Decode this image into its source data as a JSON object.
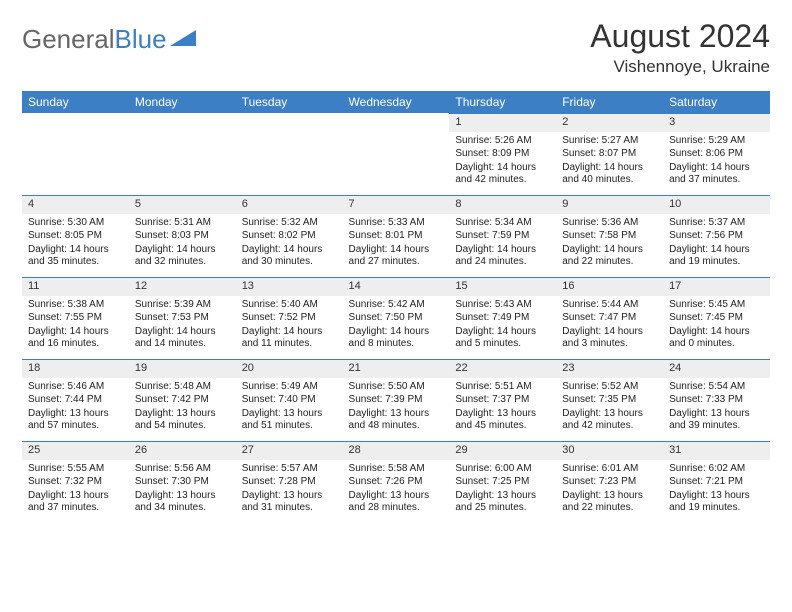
{
  "brand": {
    "part1": "General",
    "part2": "Blue"
  },
  "title": "August 2024",
  "subtitle": "Vishennoye, Ukraine",
  "header_bg": "#3d7fc4",
  "dayname_bg": "#eeeeee",
  "daynames": [
    "Sunday",
    "Monday",
    "Tuesday",
    "Wednesday",
    "Thursday",
    "Friday",
    "Saturday"
  ],
  "weeks": [
    [
      {
        "n": "",
        "sr": "",
        "ss": "",
        "dl": ""
      },
      {
        "n": "",
        "sr": "",
        "ss": "",
        "dl": ""
      },
      {
        "n": "",
        "sr": "",
        "ss": "",
        "dl": ""
      },
      {
        "n": "",
        "sr": "",
        "ss": "",
        "dl": ""
      },
      {
        "n": "1",
        "sr": "Sunrise: 5:26 AM",
        "ss": "Sunset: 8:09 PM",
        "dl": "Daylight: 14 hours and 42 minutes."
      },
      {
        "n": "2",
        "sr": "Sunrise: 5:27 AM",
        "ss": "Sunset: 8:07 PM",
        "dl": "Daylight: 14 hours and 40 minutes."
      },
      {
        "n": "3",
        "sr": "Sunrise: 5:29 AM",
        "ss": "Sunset: 8:06 PM",
        "dl": "Daylight: 14 hours and 37 minutes."
      }
    ],
    [
      {
        "n": "4",
        "sr": "Sunrise: 5:30 AM",
        "ss": "Sunset: 8:05 PM",
        "dl": "Daylight: 14 hours and 35 minutes."
      },
      {
        "n": "5",
        "sr": "Sunrise: 5:31 AM",
        "ss": "Sunset: 8:03 PM",
        "dl": "Daylight: 14 hours and 32 minutes."
      },
      {
        "n": "6",
        "sr": "Sunrise: 5:32 AM",
        "ss": "Sunset: 8:02 PM",
        "dl": "Daylight: 14 hours and 30 minutes."
      },
      {
        "n": "7",
        "sr": "Sunrise: 5:33 AM",
        "ss": "Sunset: 8:01 PM",
        "dl": "Daylight: 14 hours and 27 minutes."
      },
      {
        "n": "8",
        "sr": "Sunrise: 5:34 AM",
        "ss": "Sunset: 7:59 PM",
        "dl": "Daylight: 14 hours and 24 minutes."
      },
      {
        "n": "9",
        "sr": "Sunrise: 5:36 AM",
        "ss": "Sunset: 7:58 PM",
        "dl": "Daylight: 14 hours and 22 minutes."
      },
      {
        "n": "10",
        "sr": "Sunrise: 5:37 AM",
        "ss": "Sunset: 7:56 PM",
        "dl": "Daylight: 14 hours and 19 minutes."
      }
    ],
    [
      {
        "n": "11",
        "sr": "Sunrise: 5:38 AM",
        "ss": "Sunset: 7:55 PM",
        "dl": "Daylight: 14 hours and 16 minutes."
      },
      {
        "n": "12",
        "sr": "Sunrise: 5:39 AM",
        "ss": "Sunset: 7:53 PM",
        "dl": "Daylight: 14 hours and 14 minutes."
      },
      {
        "n": "13",
        "sr": "Sunrise: 5:40 AM",
        "ss": "Sunset: 7:52 PM",
        "dl": "Daylight: 14 hours and 11 minutes."
      },
      {
        "n": "14",
        "sr": "Sunrise: 5:42 AM",
        "ss": "Sunset: 7:50 PM",
        "dl": "Daylight: 14 hours and 8 minutes."
      },
      {
        "n": "15",
        "sr": "Sunrise: 5:43 AM",
        "ss": "Sunset: 7:49 PM",
        "dl": "Daylight: 14 hours and 5 minutes."
      },
      {
        "n": "16",
        "sr": "Sunrise: 5:44 AM",
        "ss": "Sunset: 7:47 PM",
        "dl": "Daylight: 14 hours and 3 minutes."
      },
      {
        "n": "17",
        "sr": "Sunrise: 5:45 AM",
        "ss": "Sunset: 7:45 PM",
        "dl": "Daylight: 14 hours and 0 minutes."
      }
    ],
    [
      {
        "n": "18",
        "sr": "Sunrise: 5:46 AM",
        "ss": "Sunset: 7:44 PM",
        "dl": "Daylight: 13 hours and 57 minutes."
      },
      {
        "n": "19",
        "sr": "Sunrise: 5:48 AM",
        "ss": "Sunset: 7:42 PM",
        "dl": "Daylight: 13 hours and 54 minutes."
      },
      {
        "n": "20",
        "sr": "Sunrise: 5:49 AM",
        "ss": "Sunset: 7:40 PM",
        "dl": "Daylight: 13 hours and 51 minutes."
      },
      {
        "n": "21",
        "sr": "Sunrise: 5:50 AM",
        "ss": "Sunset: 7:39 PM",
        "dl": "Daylight: 13 hours and 48 minutes."
      },
      {
        "n": "22",
        "sr": "Sunrise: 5:51 AM",
        "ss": "Sunset: 7:37 PM",
        "dl": "Daylight: 13 hours and 45 minutes."
      },
      {
        "n": "23",
        "sr": "Sunrise: 5:52 AM",
        "ss": "Sunset: 7:35 PM",
        "dl": "Daylight: 13 hours and 42 minutes."
      },
      {
        "n": "24",
        "sr": "Sunrise: 5:54 AM",
        "ss": "Sunset: 7:33 PM",
        "dl": "Daylight: 13 hours and 39 minutes."
      }
    ],
    [
      {
        "n": "25",
        "sr": "Sunrise: 5:55 AM",
        "ss": "Sunset: 7:32 PM",
        "dl": "Daylight: 13 hours and 37 minutes."
      },
      {
        "n": "26",
        "sr": "Sunrise: 5:56 AM",
        "ss": "Sunset: 7:30 PM",
        "dl": "Daylight: 13 hours and 34 minutes."
      },
      {
        "n": "27",
        "sr": "Sunrise: 5:57 AM",
        "ss": "Sunset: 7:28 PM",
        "dl": "Daylight: 13 hours and 31 minutes."
      },
      {
        "n": "28",
        "sr": "Sunrise: 5:58 AM",
        "ss": "Sunset: 7:26 PM",
        "dl": "Daylight: 13 hours and 28 minutes."
      },
      {
        "n": "29",
        "sr": "Sunrise: 6:00 AM",
        "ss": "Sunset: 7:25 PM",
        "dl": "Daylight: 13 hours and 25 minutes."
      },
      {
        "n": "30",
        "sr": "Sunrise: 6:01 AM",
        "ss": "Sunset: 7:23 PM",
        "dl": "Daylight: 13 hours and 22 minutes."
      },
      {
        "n": "31",
        "sr": "Sunrise: 6:02 AM",
        "ss": "Sunset: 7:21 PM",
        "dl": "Daylight: 13 hours and 19 minutes."
      }
    ]
  ]
}
